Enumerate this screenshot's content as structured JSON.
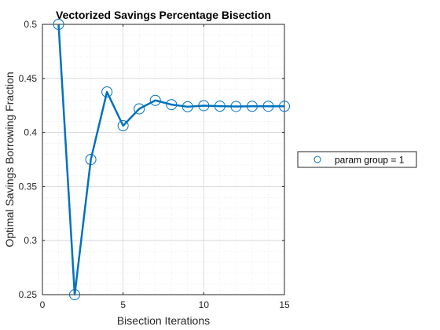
{
  "chart_data": {
    "type": "line",
    "title": "Vectorized Savings Percentage Bisection",
    "xlabel": "Bisection Iterations",
    "ylabel": "Optimal Savings Borrowing Fraction",
    "xlim": [
      0,
      15
    ],
    "ylim": [
      0.25,
      0.5
    ],
    "xticks": [
      0,
      5,
      10,
      15
    ],
    "yticks": [
      0.25,
      0.3,
      0.35,
      0.4,
      0.45,
      0.5
    ],
    "xtick_labels": [
      "0",
      "5",
      "10",
      "15"
    ],
    "ytick_labels": [
      "0.25",
      "0.3",
      "0.35",
      "0.4",
      "0.45",
      "0.5"
    ],
    "grid": true,
    "minor_grid": true,
    "legend_position": "outside-right",
    "series": [
      {
        "name": "param group =  1",
        "color": "#0072BD",
        "marker": "circle",
        "x": [
          1,
          2,
          3,
          4,
          5,
          6,
          7,
          8,
          9,
          10,
          11,
          12,
          13,
          14,
          15
        ],
        "values": [
          0.5,
          0.25,
          0.375,
          0.4375,
          0.40625,
          0.421875,
          0.4296875,
          0.42578125,
          0.423828125,
          0.4248046875,
          0.42431640625,
          0.424072265625,
          0.4241943359375,
          0.42425537109375,
          0.424224853515625
        ]
      }
    ]
  }
}
